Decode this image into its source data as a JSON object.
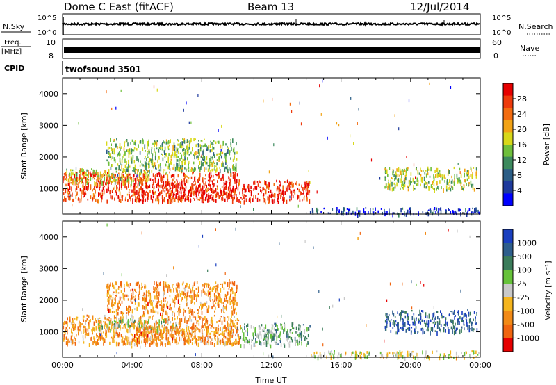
{
  "header": {
    "station": "Dome C East (fitACF)",
    "beam": "Beam 13",
    "date": "12/Jul/2014"
  },
  "top_panels": {
    "nsky_label": "N.Sky",
    "nsky_ticks": [
      "10^5",
      "10^0"
    ],
    "nsearch_label": "N.Search",
    "nsearch_ticks": [
      "10^5",
      "10^0"
    ],
    "freq_label_1": "Freq.",
    "freq_label_2": "[MHz]",
    "freq_ticks": [
      "10",
      "8"
    ],
    "nave_label": "Nave",
    "nave_ticks": [
      "60",
      "0"
    ],
    "cpid_label": "CPID",
    "cpid_value": "twofsound 3501"
  },
  "colors": {
    "power_scale": [
      "#0000ff",
      "#1e3a9c",
      "#2c5e86",
      "#3d8a5e",
      "#6fbf3c",
      "#d8d81a",
      "#f2a316",
      "#f36c10",
      "#ee3a0c",
      "#e60000"
    ],
    "velocity_scale": [
      "#1a3fbf",
      "#2e5e8c",
      "#3b7c5a",
      "#66c23a",
      "#c9c9c9",
      "#f5b51e",
      "#f28a16",
      "#f06510",
      "#e60000"
    ]
  },
  "chart_data": [
    {
      "type": "heatmap",
      "name": "power-panel",
      "ylabel": "Slant Range [km]",
      "yticks": [
        "1000",
        "2000",
        "3000",
        "4000"
      ],
      "ylim": [
        200,
        4500
      ],
      "xlim": [
        0,
        24
      ],
      "colorbar_label": "Power [dB]",
      "colorbar_ticks": [
        "4",
        "8",
        "12",
        "16",
        "20",
        "24",
        "28"
      ],
      "colorbar_range": [
        0,
        30
      ],
      "regions": [
        {
          "t": [
            0,
            10.2
          ],
          "r": [
            650,
            1550
          ],
          "level": 0.85
        },
        {
          "t": [
            0.2,
            5
          ],
          "r": [
            1200,
            1650
          ],
          "level": 0.55
        },
        {
          "t": [
            4,
            10
          ],
          "r": [
            650,
            1200
          ],
          "level": 0.95
        },
        {
          "t": [
            10.2,
            14.2
          ],
          "r": [
            600,
            1300
          ],
          "level": 0.9
        },
        {
          "t": [
            2.5,
            10
          ],
          "r": [
            1600,
            2600
          ],
          "level": 0.45
        },
        {
          "t": [
            18.5,
            23.8
          ],
          "r": [
            1000,
            1700
          ],
          "level": 0.5
        },
        {
          "t": [
            14.2,
            24
          ],
          "r": [
            220,
            420
          ],
          "level": 0.15
        }
      ]
    },
    {
      "type": "heatmap",
      "name": "velocity-panel",
      "ylabel": "Slant Range [km]",
      "yticks": [
        "1000",
        "2000",
        "3000",
        "4000"
      ],
      "ylim": [
        200,
        4500
      ],
      "xlim": [
        0,
        24
      ],
      "xticks": [
        "00:00",
        "04:00",
        "08:00",
        "12:00",
        "16:00",
        "20:00",
        "00:00"
      ],
      "xlabel": "Time UT",
      "colorbar_label": "Velocity [m s⁻¹]",
      "colorbar_ticks": [
        "1000",
        "500",
        "100",
        "25",
        "-25",
        "-100",
        "-500",
        "-1000"
      ],
      "regions": [
        {
          "t": [
            0,
            10.2
          ],
          "r": [
            650,
            1550
          ],
          "level": 0.7
        },
        {
          "t": [
            2,
            6.5
          ],
          "r": [
            1100,
            1450
          ],
          "level": 0.45
        },
        {
          "t": [
            4,
            10
          ],
          "r": [
            650,
            1200
          ],
          "level": 0.72
        },
        {
          "t": [
            10.2,
            14.2
          ],
          "r": [
            600,
            1300
          ],
          "level": 0.35
        },
        {
          "t": [
            2.5,
            10
          ],
          "r": [
            1600,
            2600
          ],
          "level": 0.72
        },
        {
          "t": [
            18.5,
            23.8
          ],
          "r": [
            1000,
            1700
          ],
          "level": 0.15
        },
        {
          "t": [
            14.2,
            24
          ],
          "r": [
            220,
            420
          ],
          "level": 0.5
        }
      ]
    }
  ]
}
